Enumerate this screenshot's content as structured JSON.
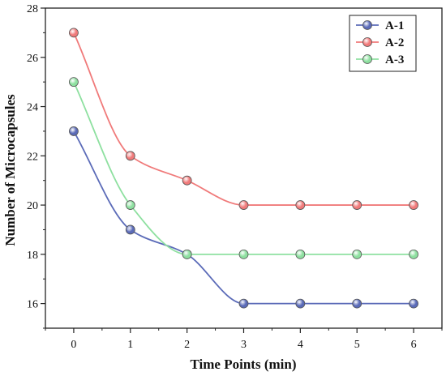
{
  "chart_data": {
    "type": "line",
    "title": "",
    "xlabel": "Time Points (min)",
    "ylabel": "Number of Microcapsules",
    "x": [
      0,
      1,
      2,
      3,
      4,
      5,
      6
    ],
    "x_tick_labels": [
      "0",
      "1",
      "2",
      "3",
      "4",
      "5",
      "6"
    ],
    "xlim": [
      -0.5,
      6.5
    ],
    "ylim": [
      15,
      28
    ],
    "y_ticks": [
      16,
      18,
      20,
      22,
      24,
      26,
      28
    ],
    "y_tick_labels": [
      "16",
      "18",
      "20",
      "22",
      "24",
      "26",
      "28"
    ],
    "grid": false,
    "legend_position": "top-right",
    "smooth": true,
    "series": [
      {
        "name": "A-1",
        "values": [
          23,
          19,
          18,
          16,
          16,
          16,
          16
        ],
        "color": "#5b6bb8"
      },
      {
        "name": "A-2",
        "values": [
          27,
          22,
          21,
          20,
          20,
          20,
          20
        ],
        "color": "#f07a7a"
      },
      {
        "name": "A-3",
        "values": [
          25,
          20,
          18,
          18,
          18,
          18,
          18
        ],
        "color": "#8ee0a0"
      }
    ]
  }
}
